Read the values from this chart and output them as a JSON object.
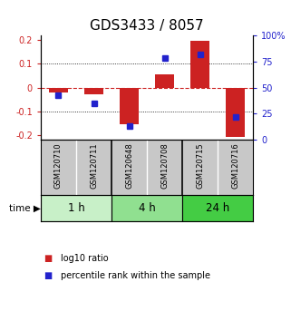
{
  "title": "GDS3433 / 8057",
  "samples": [
    "GSM120710",
    "GSM120711",
    "GSM120648",
    "GSM120708",
    "GSM120715",
    "GSM120716"
  ],
  "log10_ratio": [
    -0.02,
    -0.03,
    -0.155,
    0.055,
    0.195,
    -0.21
  ],
  "percentile_rank": [
    43,
    35,
    13,
    78,
    82,
    22
  ],
  "time_groups": [
    {
      "label": "1 h",
      "span": [
        0,
        2
      ],
      "color": "#c8f0c8"
    },
    {
      "label": "4 h",
      "span": [
        2,
        4
      ],
      "color": "#90e090"
    },
    {
      "label": "24 h",
      "span": [
        4,
        6
      ],
      "color": "#44cc44"
    }
  ],
  "ylim": [
    -0.22,
    0.22
  ],
  "right_ylim": [
    0,
    100
  ],
  "bar_color_red": "#cc2222",
  "bar_color_blue": "#2222cc",
  "zero_line_color": "#cc2222",
  "bg_color": "#ffffff",
  "title_fontsize": 11,
  "tick_fontsize": 7,
  "sample_label_fontsize": 6,
  "legend_fontsize": 7,
  "sample_bg_color": "#c8c8c8",
  "sample_border_color": "#000000",
  "group_border_color": "#000000"
}
